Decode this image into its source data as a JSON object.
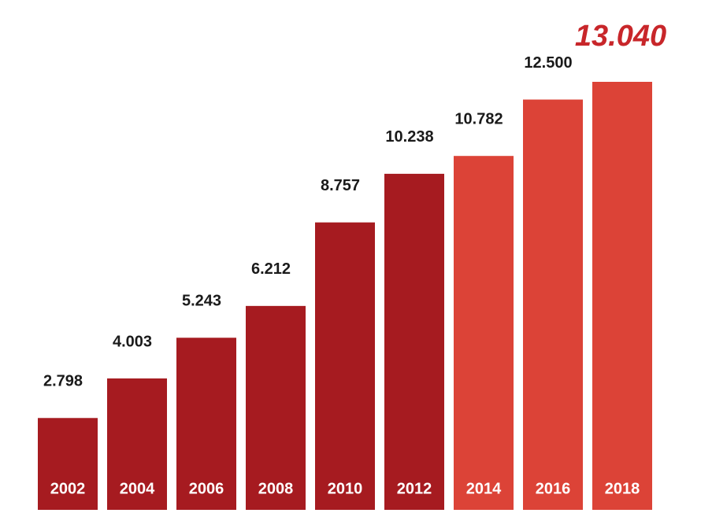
{
  "chart_data": {
    "type": "bar",
    "categories": [
      "2002",
      "2004",
      "2006",
      "2008",
      "2010",
      "2012",
      "2014",
      "2016",
      "2018"
    ],
    "values": [
      2798,
      4003,
      5243,
      6212,
      8757,
      10238,
      10782,
      12500,
      13040
    ],
    "value_labels": [
      "2.798",
      "4.003",
      "5.243",
      "6.212",
      "8.757",
      "10.238",
      "10.782",
      "12.500",
      "13.040"
    ],
    "colors": [
      "#a61b20",
      "#a61b20",
      "#a61b20",
      "#a61b20",
      "#a61b20",
      "#a61b20",
      "#dc4337",
      "#dc4337",
      "#dc4337"
    ]
  }
}
